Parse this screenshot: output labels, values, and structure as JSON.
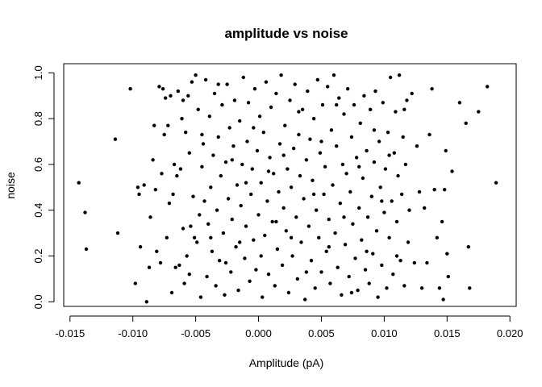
{
  "chart_data": {
    "type": "scatter",
    "title": "amplitude vs noise",
    "xlabel": "Amplitude (pA)",
    "ylabel": "noise",
    "xlim": [
      -0.0155,
      0.0205
    ],
    "ylim": [
      -0.02,
      1.04
    ],
    "x_ticks": [
      -0.015,
      -0.01,
      -0.005,
      0.0,
      0.005,
      0.01,
      0.015,
      0.02
    ],
    "x_tick_labels": [
      "-0.015",
      "-0.010",
      "-0.005",
      "0.000",
      "0.005",
      "0.010",
      "0.015",
      "0.020"
    ],
    "y_ticks": [
      0.0,
      0.2,
      0.4,
      0.6,
      0.8,
      1.0
    ],
    "y_tick_labels": [
      "0.0",
      "0.2",
      "0.4",
      "0.6",
      "0.8",
      "1.0"
    ],
    "grid": false,
    "legend": "none",
    "marker_color": "#000000",
    "points": [
      [
        -0.0143,
        0.52
      ],
      [
        -0.0138,
        0.39
      ],
      [
        -0.0137,
        0.23
      ],
      [
        -0.0114,
        0.71
      ],
      [
        -0.0112,
        0.3
      ],
      [
        -0.0102,
        0.93
      ],
      [
        -0.0098,
        0.08
      ],
      [
        -0.0096,
        0.5
      ],
      [
        -0.0095,
        0.47
      ],
      [
        -0.0094,
        0.24
      ],
      [
        -0.0091,
        0.51
      ],
      [
        -0.0089,
        0.0
      ],
      [
        -0.0087,
        0.15
      ],
      [
        -0.0086,
        0.37
      ],
      [
        -0.0084,
        0.62
      ],
      [
        -0.0083,
        0.77
      ],
      [
        -0.0082,
        0.49
      ],
      [
        -0.0081,
        0.22
      ],
      [
        -0.0079,
        0.94
      ],
      [
        -0.0078,
        0.17
      ],
      [
        -0.0077,
        0.56
      ],
      [
        -0.0076,
        0.93
      ],
      [
        -0.0075,
        0.73
      ],
      [
        -0.0074,
        0.89
      ],
      [
        -0.0073,
        0.28
      ],
      [
        -0.0072,
        0.77
      ],
      [
        -0.0071,
        0.43
      ],
      [
        -0.007,
        0.9
      ],
      [
        -0.0069,
        0.04
      ],
      [
        -0.0068,
        0.47
      ],
      [
        -0.0067,
        0.6
      ],
      [
        -0.0066,
        0.15
      ],
      [
        -0.0065,
        0.55
      ],
      [
        -0.0064,
        0.92
      ],
      [
        -0.0063,
        0.16
      ],
      [
        -0.0062,
        0.58
      ],
      [
        -0.0061,
        0.8
      ],
      [
        -0.006,
        0.88
      ],
      [
        -0.0059,
        0.08
      ],
      [
        -0.0058,
        0.74
      ],
      [
        -0.0057,
        0.2
      ],
      [
        -0.0056,
        0.9
      ],
      [
        -0.0055,
        0.65
      ],
      [
        -0.0054,
        0.33
      ],
      [
        -0.0053,
        0.96
      ],
      [
        -0.0052,
        0.46
      ],
      [
        -0.0051,
        0.28
      ],
      [
        -0.005,
        0.99
      ],
      [
        -0.0049,
        0.26
      ],
      [
        -0.0048,
        0.84
      ],
      [
        -0.0047,
        0.38
      ],
      [
        -0.0046,
        0.02
      ],
      [
        -0.0045,
        0.59
      ],
      [
        -0.0044,
        0.69
      ],
      [
        -0.0043,
        0.44
      ],
      [
        -0.0042,
        0.97
      ],
      [
        -0.0041,
        0.11
      ],
      [
        -0.004,
        0.34
      ],
      [
        -0.0039,
        0.81
      ],
      [
        -0.0038,
        0.5
      ],
      [
        -0.0037,
        0.22
      ],
      [
        -0.0036,
        0.64
      ],
      [
        -0.0035,
        0.91
      ],
      [
        -0.0034,
        0.07
      ],
      [
        -0.0033,
        0.4
      ],
      [
        -0.0032,
        0.72
      ],
      [
        -0.0031,
        0.18
      ],
      [
        -0.003,
        0.55
      ],
      [
        -0.0029,
        0.86
      ],
      [
        -0.0028,
        0.3
      ],
      [
        -0.0027,
        0.03
      ],
      [
        -0.0026,
        0.61
      ],
      [
        -0.0025,
        0.95
      ],
      [
        -0.0024,
        0.45
      ],
      [
        -0.0023,
        0.76
      ],
      [
        -0.0022,
        0.13
      ],
      [
        -0.0021,
        0.36
      ],
      [
        -0.002,
        0.68
      ],
      [
        -0.0019,
        0.88
      ],
      [
        -0.0018,
        0.24
      ],
      [
        -0.0017,
        0.51
      ],
      [
        -0.0016,
        0.05
      ],
      [
        -0.0015,
        0.79
      ],
      [
        -0.0014,
        0.42
      ],
      [
        -0.0013,
        0.6
      ],
      [
        -0.0012,
        0.98
      ],
      [
        -0.0011,
        0.19
      ],
      [
        -0.001,
        0.33
      ],
      [
        -0.0009,
        0.7
      ],
      [
        -0.0008,
        0.87
      ],
      [
        -0.0007,
        0.09
      ],
      [
        -0.0006,
        0.47
      ],
      [
        -0.0005,
        0.58
      ],
      [
        -0.0004,
        0.27
      ],
      [
        -0.0003,
        0.93
      ],
      [
        -0.0002,
        0.14
      ],
      [
        -0.0001,
        0.66
      ],
      [
        0.0,
        0.38
      ],
      [
        0.0001,
        0.81
      ],
      [
        0.0002,
        0.52
      ],
      [
        0.0003,
        0.02
      ],
      [
        0.0004,
        0.74
      ],
      [
        0.0005,
        0.29
      ],
      [
        0.0006,
        0.96
      ],
      [
        0.0007,
        0.44
      ],
      [
        0.0008,
        0.12
      ],
      [
        0.0009,
        0.63
      ],
      [
        0.001,
        0.85
      ],
      [
        0.0011,
        0.35
      ],
      [
        0.0012,
        0.56
      ],
      [
        0.0013,
        0.07
      ],
      [
        0.0014,
        0.91
      ],
      [
        0.0015,
        0.23
      ],
      [
        0.0016,
        0.48
      ],
      [
        0.0017,
        0.69
      ],
      [
        0.0018,
        0.99
      ],
      [
        0.0019,
        0.16
      ],
      [
        0.002,
        0.41
      ],
      [
        0.0021,
        0.77
      ],
      [
        0.0022,
        0.31
      ],
      [
        0.0023,
        0.58
      ],
      [
        0.0024,
        0.04
      ],
      [
        0.0025,
        0.88
      ],
      [
        0.0026,
        0.5
      ],
      [
        0.0027,
        0.2
      ],
      [
        0.0028,
        0.67
      ],
      [
        0.0029,
        0.95
      ],
      [
        0.003,
        0.37
      ],
      [
        0.0031,
        0.1
      ],
      [
        0.0032,
        0.73
      ],
      [
        0.0033,
        0.55
      ],
      [
        0.0034,
        0.26
      ],
      [
        0.0035,
        0.84
      ],
      [
        0.0036,
        0.45
      ],
      [
        0.0037,
        0.01
      ],
      [
        0.0038,
        0.62
      ],
      [
        0.0039,
        0.92
      ],
      [
        0.004,
        0.33
      ],
      [
        0.0041,
        0.71
      ],
      [
        0.0042,
        0.18
      ],
      [
        0.0043,
        0.53
      ],
      [
        0.0044,
        0.8
      ],
      [
        0.0045,
        0.06
      ],
      [
        0.0046,
        0.4
      ],
      [
        0.0047,
        0.97
      ],
      [
        0.0048,
        0.28
      ],
      [
        0.0049,
        0.65
      ],
      [
        0.005,
        0.13
      ],
      [
        0.0051,
        0.86
      ],
      [
        0.0052,
        0.47
      ],
      [
        0.0053,
        0.59
      ],
      [
        0.0054,
        0.22
      ],
      [
        0.0055,
        0.94
      ],
      [
        0.0056,
        0.36
      ],
      [
        0.0057,
        0.08
      ],
      [
        0.0058,
        0.75
      ],
      [
        0.0059,
        0.51
      ],
      [
        0.006,
        0.99
      ],
      [
        0.0061,
        0.3
      ],
      [
        0.0062,
        0.68
      ],
      [
        0.0063,
        0.15
      ],
      [
        0.0064,
        0.89
      ],
      [
        0.0065,
        0.43
      ],
      [
        0.0066,
        0.03
      ],
      [
        0.0067,
        0.6
      ],
      [
        0.0068,
        0.82
      ],
      [
        0.0069,
        0.25
      ],
      [
        0.007,
        0.56
      ],
      [
        0.0071,
        0.93
      ],
      [
        0.0072,
        0.11
      ],
      [
        0.0073,
        0.48
      ],
      [
        0.0074,
        0.72
      ],
      [
        0.0075,
        0.34
      ],
      [
        0.0076,
        0.86
      ],
      [
        0.0077,
        0.19
      ],
      [
        0.0078,
        0.63
      ],
      [
        0.0079,
        0.05
      ],
      [
        0.008,
        0.41
      ],
      [
        0.0081,
        0.78
      ],
      [
        0.0082,
        0.27
      ],
      [
        0.0083,
        0.54
      ],
      [
        0.0084,
        0.9
      ],
      [
        0.0085,
        0.14
      ],
      [
        0.0086,
        0.66
      ],
      [
        0.0087,
        0.37
      ],
      [
        0.0088,
        0.08
      ],
      [
        0.0089,
        0.84
      ],
      [
        0.009,
        0.46
      ],
      [
        0.0091,
        0.21
      ],
      [
        0.0092,
        0.61
      ],
      [
        0.0093,
        0.92
      ],
      [
        0.0094,
        0.31
      ],
      [
        0.0095,
        0.02
      ],
      [
        0.0096,
        0.7
      ],
      [
        0.0097,
        0.5
      ],
      [
        0.0098,
        0.16
      ],
      [
        0.0099,
        0.87
      ],
      [
        0.01,
        0.39
      ],
      [
        0.0101,
        0.58
      ],
      [
        0.0102,
        0.06
      ],
      [
        0.0103,
        0.74
      ],
      [
        0.0104,
        0.28
      ],
      [
        0.0105,
        0.98
      ],
      [
        0.0106,
        0.44
      ],
      [
        0.0107,
        0.12
      ],
      [
        0.0108,
        0.65
      ],
      [
        0.0109,
        0.83
      ],
      [
        0.011,
        0.35
      ],
      [
        0.0111,
        0.55
      ],
      [
        0.0112,
        0.99
      ],
      [
        0.0113,
        0.18
      ],
      [
        0.0114,
        0.47
      ],
      [
        0.0115,
        0.72
      ],
      [
        0.0116,
        0.07
      ],
      [
        0.0117,
        0.6
      ],
      [
        0.0118,
        0.88
      ],
      [
        0.0119,
        0.26
      ],
      [
        0.012,
        0.4
      ],
      [
        0.0122,
        0.91
      ],
      [
        0.0124,
        0.17
      ],
      [
        0.0126,
        0.68
      ],
      [
        0.0128,
        0.48
      ],
      [
        0.013,
        0.06
      ],
      [
        0.0132,
        0.41
      ],
      [
        0.0134,
        0.17
      ],
      [
        0.0136,
        0.73
      ],
      [
        0.0138,
        0.93
      ],
      [
        0.014,
        0.49
      ],
      [
        0.0142,
        0.28
      ],
      [
        0.0144,
        0.06
      ],
      [
        0.0146,
        0.35
      ],
      [
        0.0147,
        0.01
      ],
      [
        0.0148,
        0.49
      ],
      [
        0.0149,
        0.66
      ],
      [
        0.015,
        0.21
      ],
      [
        0.0151,
        0.11
      ],
      [
        0.0154,
        0.57
      ],
      [
        0.016,
        0.87
      ],
      [
        0.0165,
        0.78
      ],
      [
        0.0167,
        0.24
      ],
      [
        0.0168,
        0.06
      ],
      [
        0.0175,
        0.83
      ],
      [
        0.0182,
        0.94
      ],
      [
        0.0189,
        0.52
      ],
      [
        -0.006,
        0.32
      ],
      [
        -0.0055,
        0.12
      ],
      [
        -0.0045,
        0.73
      ],
      [
        -0.0038,
        0.28
      ],
      [
        -0.0032,
        0.95
      ],
      [
        -0.0026,
        0.17
      ],
      [
        -0.0021,
        0.62
      ],
      [
        -0.0015,
        0.26
      ],
      [
        -0.001,
        0.52
      ],
      [
        -0.0004,
        0.76
      ],
      [
        0.0002,
        0.2
      ],
      [
        0.0008,
        0.57
      ],
      [
        0.0014,
        0.35
      ],
      [
        0.002,
        0.64
      ],
      [
        0.0026,
        0.28
      ],
      [
        0.0032,
        0.83
      ],
      [
        0.0038,
        0.13
      ],
      [
        0.0044,
        0.47
      ],
      [
        0.005,
        0.7
      ],
      [
        0.0056,
        0.24
      ],
      [
        0.0062,
        0.86
      ],
      [
        0.0068,
        0.37
      ],
      [
        0.0074,
        0.04
      ],
      [
        0.008,
        0.59
      ],
      [
        0.0086,
        0.22
      ],
      [
        0.0092,
        0.75
      ],
      [
        0.0098,
        0.44
      ],
      [
        0.0104,
        0.64
      ],
      [
        0.011,
        0.2
      ],
      [
        0.0116,
        0.84
      ]
    ]
  }
}
